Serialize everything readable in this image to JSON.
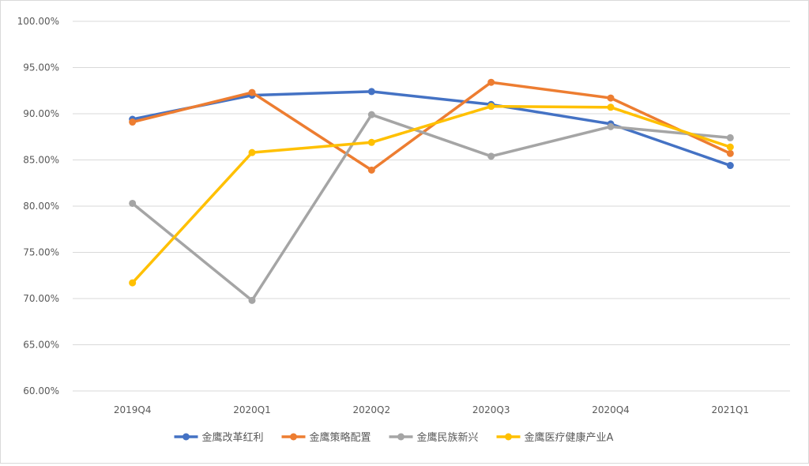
{
  "chart_data": {
    "type": "line",
    "title": "",
    "xlabel": "",
    "ylabel": "",
    "categories": [
      "2019Q4",
      "2020Q1",
      "2020Q2",
      "2020Q3",
      "2020Q4",
      "2021Q1"
    ],
    "ylim": [
      0.6,
      1.0
    ],
    "yticks": [
      "60.00%",
      "65.00%",
      "70.00%",
      "75.00%",
      "80.00%",
      "85.00%",
      "90.00%",
      "95.00%",
      "100.00%"
    ],
    "grid": true,
    "legend_position": "bottom",
    "series": [
      {
        "name": "金鹰改革红利",
        "color": "#4472c4",
        "values": [
          0.894,
          0.92,
          0.924,
          0.91,
          0.889,
          0.844
        ]
      },
      {
        "name": "金鹰策略配置",
        "color": "#ed7d31",
        "values": [
          0.891,
          0.923,
          0.839,
          0.934,
          0.917,
          0.857
        ]
      },
      {
        "name": "金鹰民族新兴",
        "color": "#a5a5a5",
        "values": [
          0.803,
          0.698,
          0.899,
          0.854,
          0.886,
          0.874
        ]
      },
      {
        "name": "金鹰医疗健康产业A",
        "color": "#ffc000",
        "values": [
          0.717,
          0.858,
          0.869,
          0.908,
          0.907,
          0.864
        ]
      }
    ]
  }
}
